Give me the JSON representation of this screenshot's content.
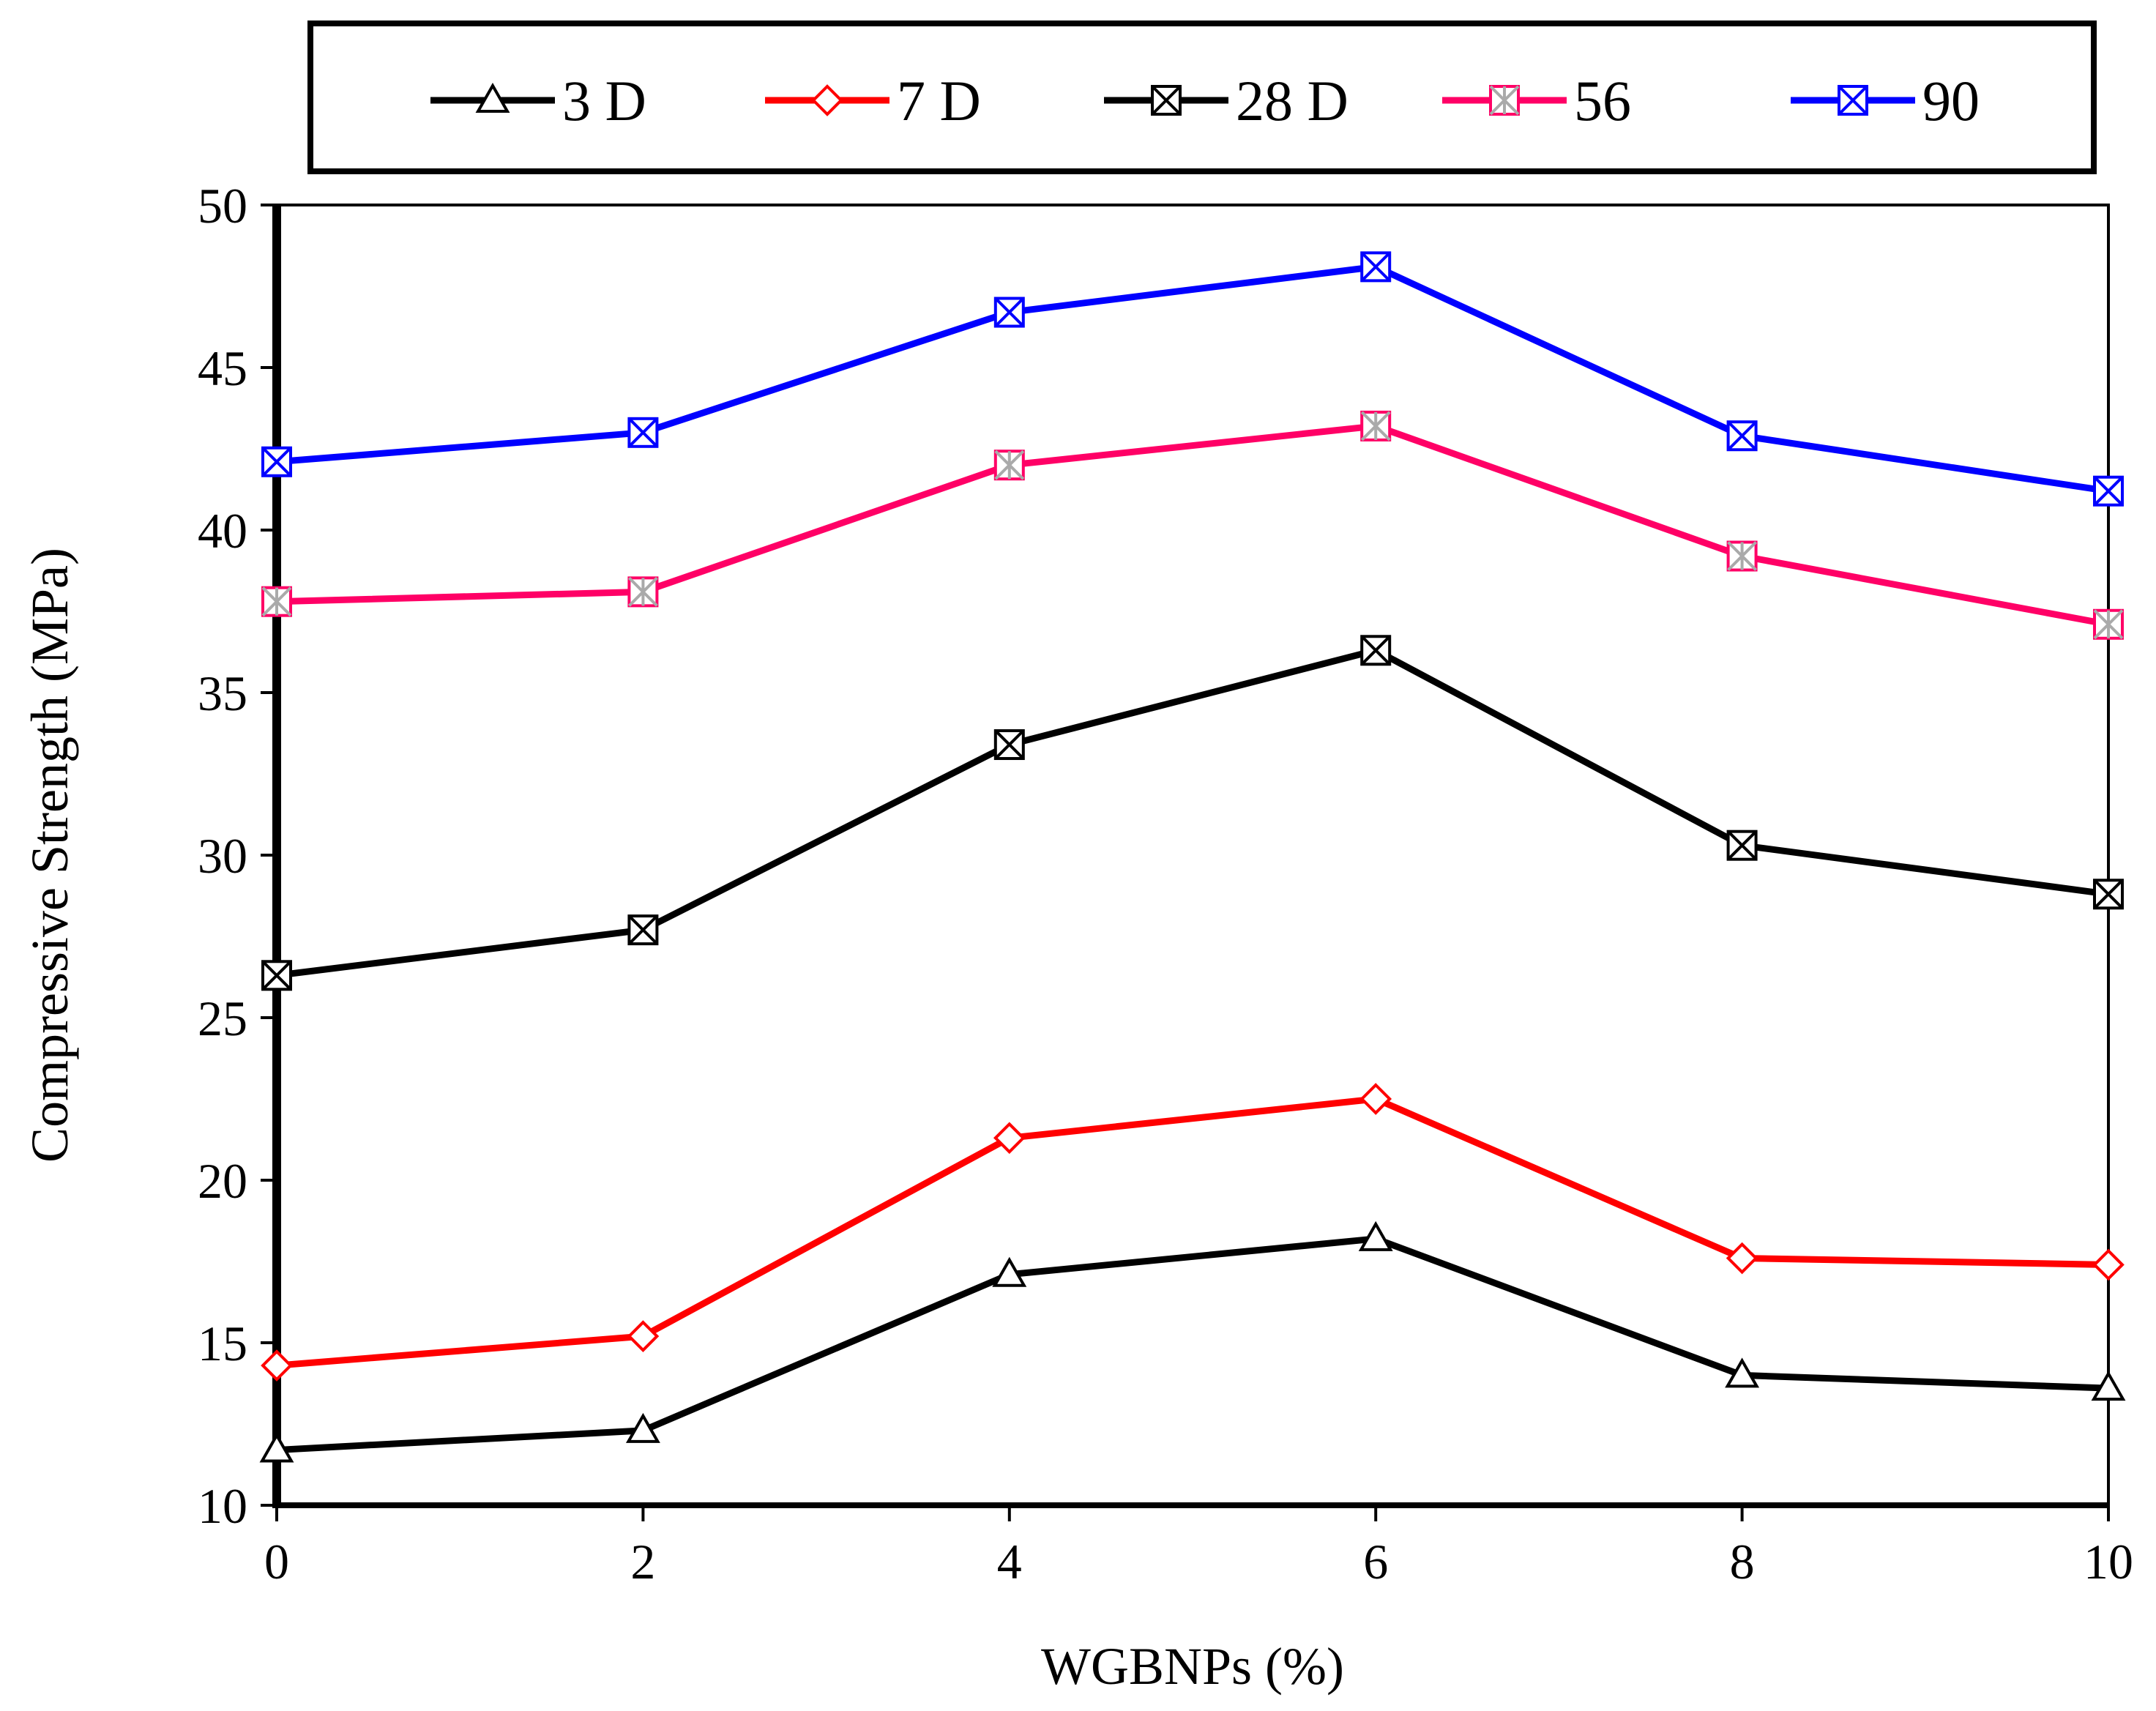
{
  "chart_data": {
    "type": "line",
    "xlabel": "WGBNPs (%)",
    "ylabel": "Compressive Strength (MPa)",
    "xlim": [
      0,
      10
    ],
    "ylim": [
      10,
      50
    ],
    "x_ticks": [
      0,
      2,
      4,
      6,
      8,
      10
    ],
    "y_ticks": [
      10,
      15,
      20,
      25,
      30,
      35,
      40,
      45,
      50
    ],
    "grid": false,
    "legend_position": "top",
    "x": [
      0,
      2,
      4,
      6,
      8,
      10
    ],
    "series": [
      {
        "name": "3 D",
        "values": [
          11.7,
          12.3,
          17.1,
          18.2,
          14.0,
          13.6
        ],
        "color": "#000000",
        "marker": "triangle-open"
      },
      {
        "name": "7 D",
        "values": [
          14.3,
          15.2,
          21.3,
          22.5,
          17.6,
          17.4
        ],
        "color": "#ff0000",
        "marker": "diamond-open"
      },
      {
        "name": "28 D",
        "values": [
          26.3,
          27.7,
          33.4,
          36.3,
          30.3,
          28.8
        ],
        "color": "#000000",
        "marker": "x-square"
      },
      {
        "name": "56",
        "values": [
          37.8,
          38.1,
          42.0,
          43.2,
          39.2,
          37.1
        ],
        "color": "#ff0066",
        "marker": "asterisk-square"
      },
      {
        "name": "90",
        "values": [
          42.1,
          43.0,
          46.7,
          48.1,
          42.9,
          41.2
        ],
        "color": "#0000ff",
        "marker": "x-square"
      }
    ]
  }
}
